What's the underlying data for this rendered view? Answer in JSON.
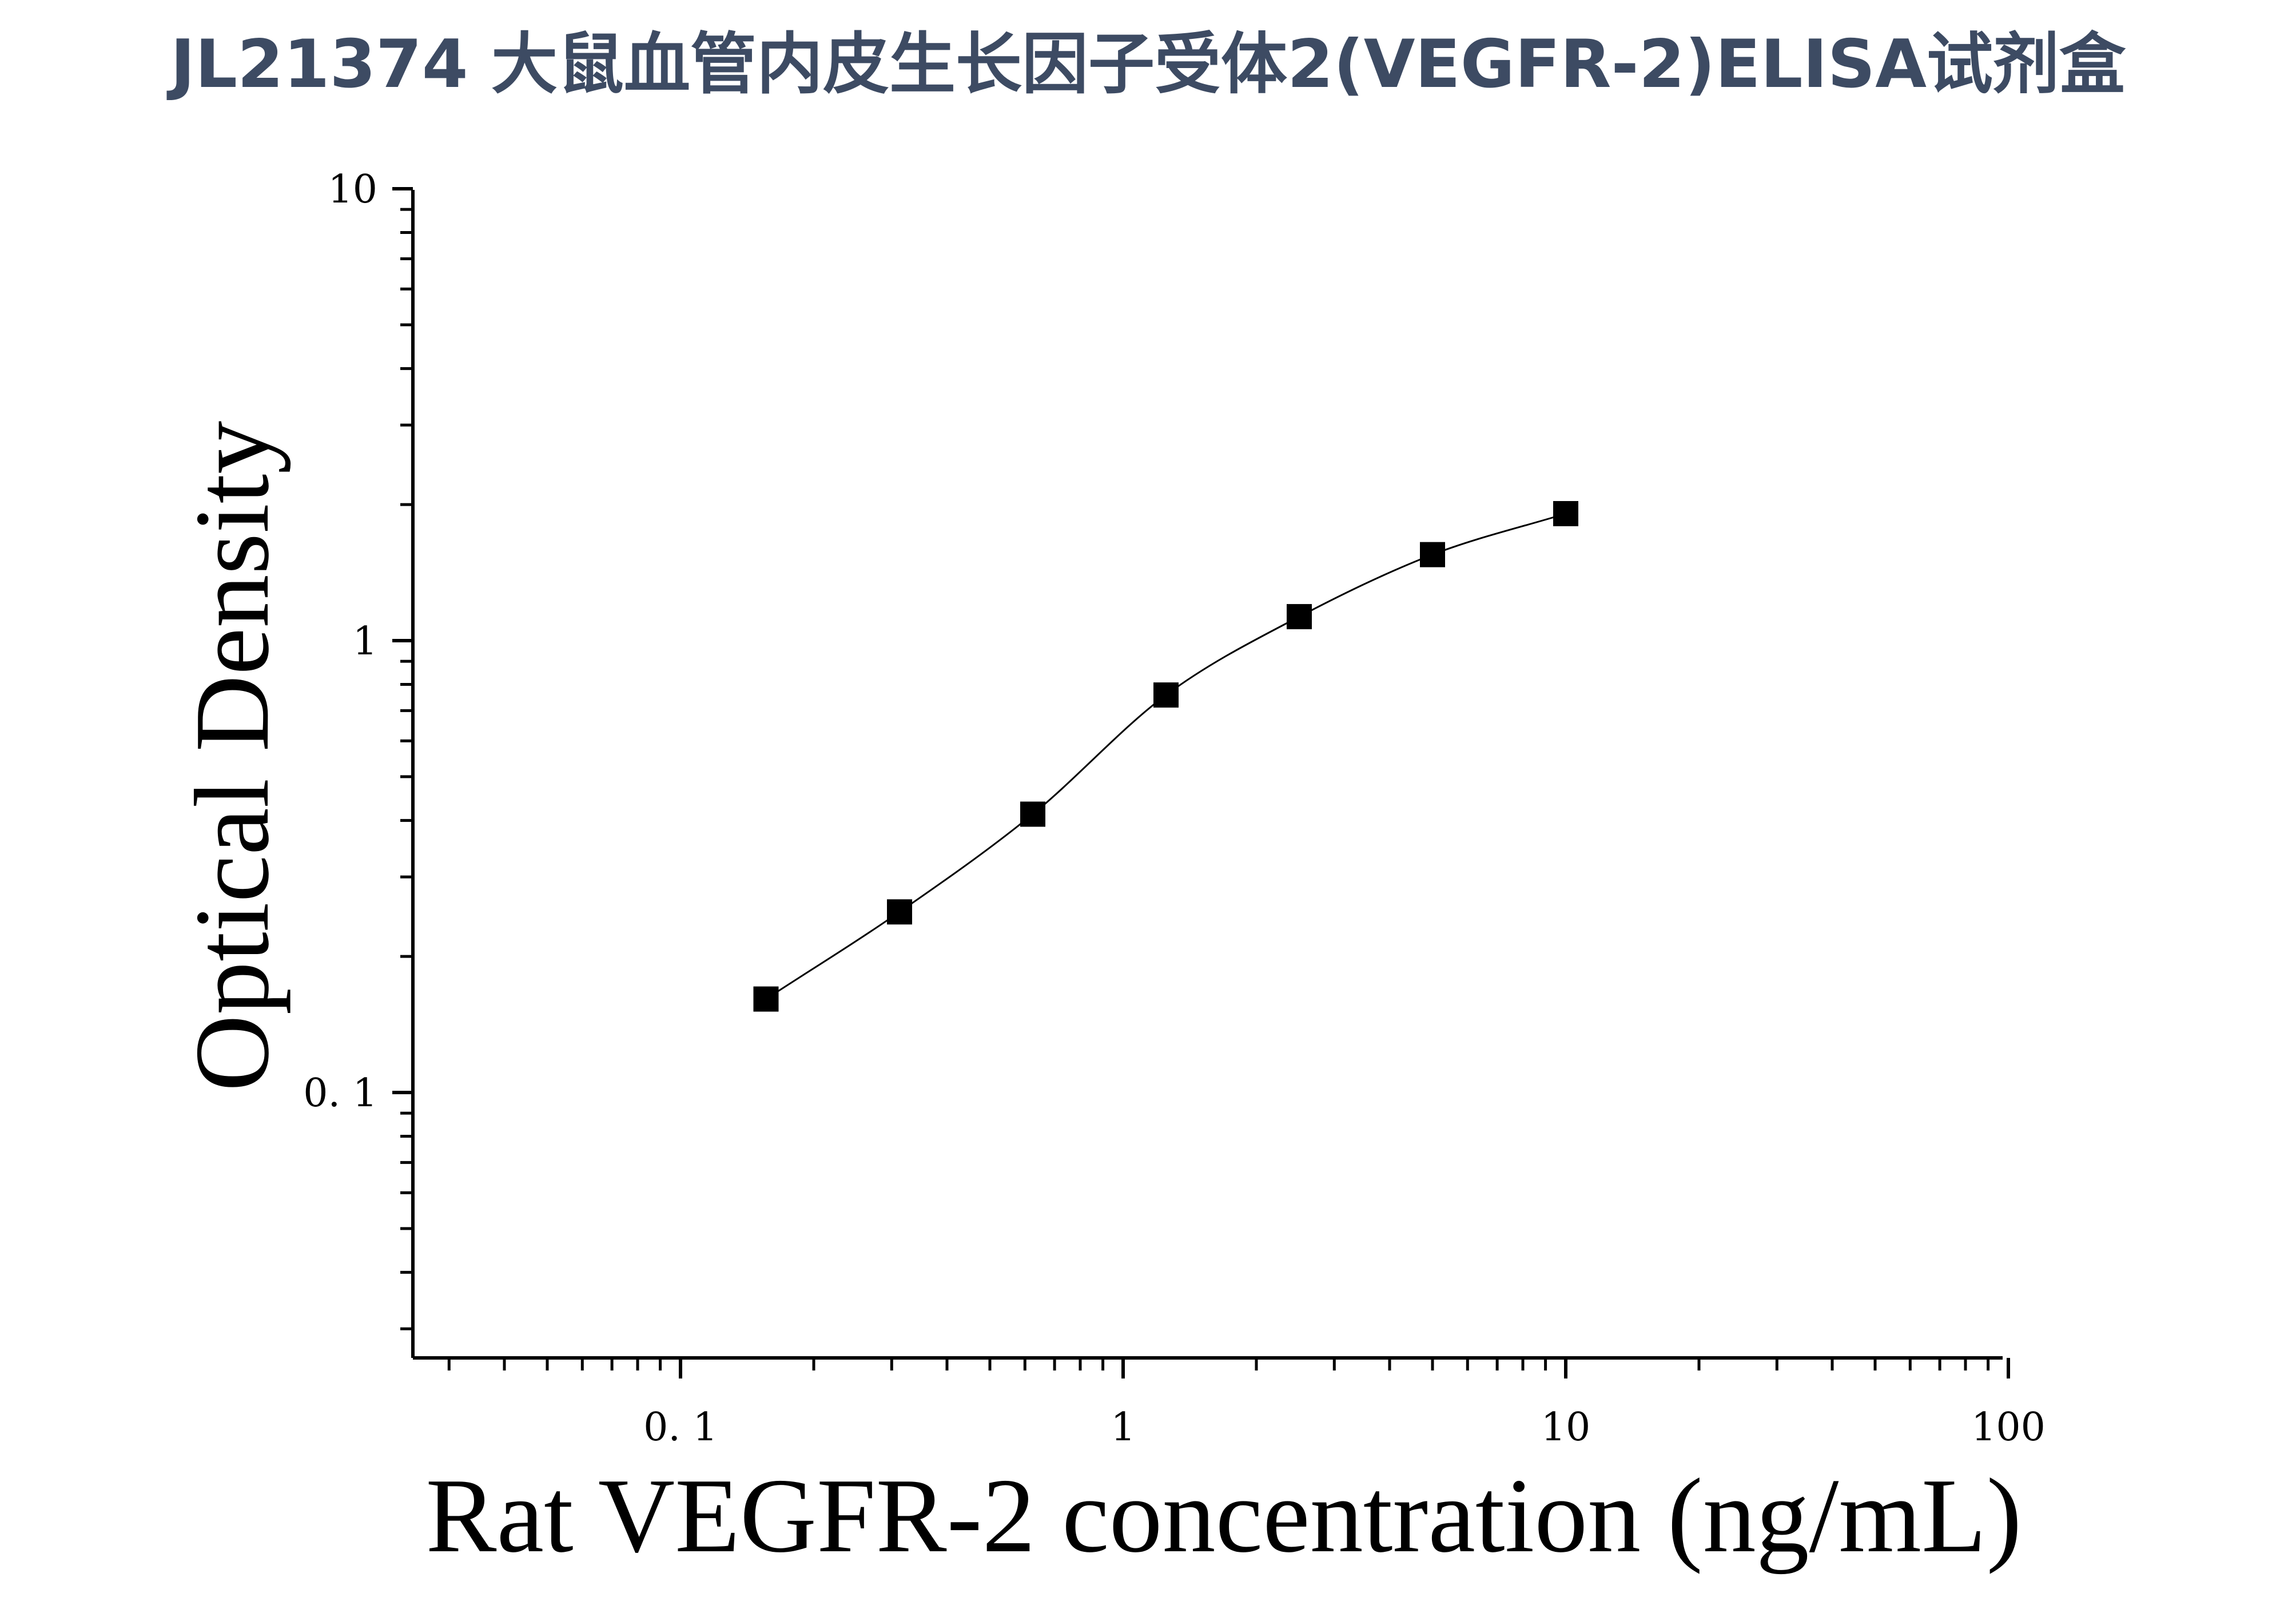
{
  "page": {
    "title": "JL21374 大鼠血管内皮生长因子受体2(VEGFR-2)ELISA试剂盒"
  },
  "colors": {
    "title": "#3d4b63",
    "axis": "#000000",
    "marker": "#000000",
    "curve": "#000000"
  },
  "chart_data": {
    "type": "scatter",
    "title": "JL21374 大鼠血管内皮生长因子受体2(VEGFR-2)ELISA试剂盒",
    "xlabel": "Rat VEGFR-2 concentration (ng/mL)",
    "ylabel": "Optical Density",
    "xscale": "log",
    "yscale": "log",
    "xlim": [
      0.025,
      100
    ],
    "ylim": [
      0.025,
      10
    ],
    "x_ticks": [
      {
        "value": 0.1,
        "label": "0. 1"
      },
      {
        "value": 1,
        "label": "1"
      },
      {
        "value": 10,
        "label": "10"
      },
      {
        "value": 100,
        "label": "100"
      }
    ],
    "y_ticks": [
      {
        "value": 0.1,
        "label": "0. 1"
      },
      {
        "value": 1,
        "label": "1"
      },
      {
        "value": 10,
        "label": "10"
      }
    ],
    "grid": false,
    "legend": "none",
    "series": [
      {
        "marker": "square",
        "fit": "smooth curve",
        "x": [
          0.156,
          0.3125,
          0.625,
          1.25,
          2.5,
          5,
          10
        ],
        "y": [
          0.161,
          0.251,
          0.413,
          0.758,
          1.13,
          1.55,
          1.91
        ]
      }
    ]
  }
}
